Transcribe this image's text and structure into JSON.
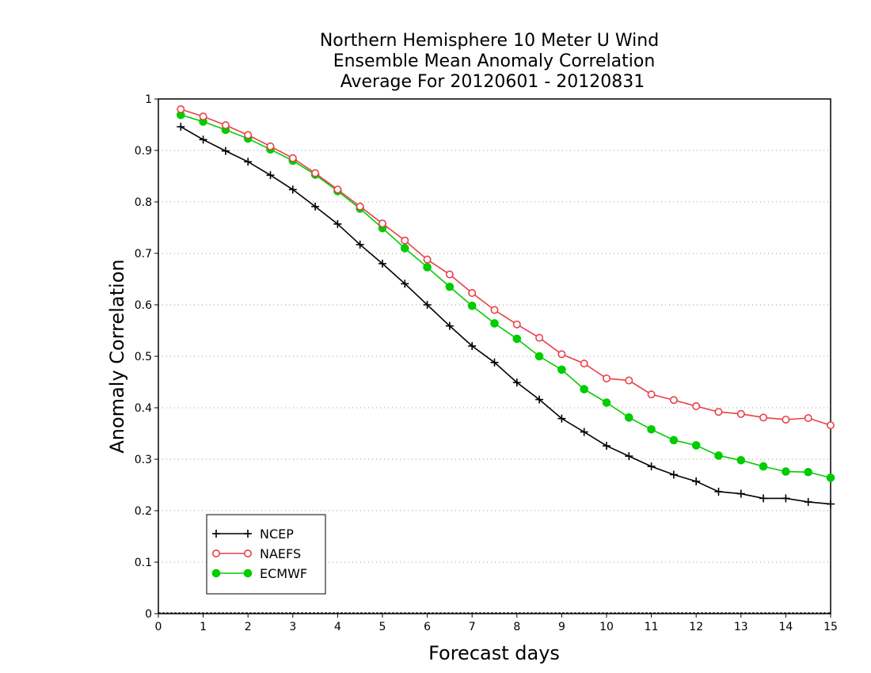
{
  "chart_data": {
    "type": "line",
    "title": [
      "Northern Hemisphere 10 Meter U Wind",
      "Ensemble Mean Anomaly Correlation",
      "Average For 20120601 - 20120831"
    ],
    "xlabel": "Forecast days",
    "ylabel": "Anomaly Correlation",
    "xlim": [
      0,
      15
    ],
    "ylim": [
      0,
      1
    ],
    "xticks": [
      "0",
      "1",
      "2",
      "3",
      "4",
      "5",
      "6",
      "7",
      "8",
      "9",
      "10",
      "11",
      "12",
      "13",
      "14",
      "15"
    ],
    "yticks": [
      "0",
      "0.1",
      "0.2",
      "0.3",
      "0.4",
      "0.5",
      "0.6",
      "0.7",
      "0.8",
      "0.9",
      "1"
    ],
    "grid": "horizontal-dotted",
    "legend_position": "bottom-left",
    "x": [
      0.5,
      1,
      1.5,
      2,
      2.5,
      3,
      3.5,
      4,
      4.5,
      5,
      5.5,
      6,
      6.5,
      7,
      7.5,
      8,
      8.5,
      9,
      9.5,
      10,
      10.5,
      11,
      11.5,
      12,
      12.5,
      13,
      13.5,
      14,
      14.5,
      15
    ],
    "series": [
      {
        "name": "NCEP",
        "color": "#000000",
        "marker": "plus",
        "values": [
          0.946,
          0.921,
          0.899,
          0.878,
          0.852,
          0.824,
          0.791,
          0.757,
          0.717,
          0.68,
          0.641,
          0.6,
          0.559,
          0.52,
          0.488,
          0.449,
          0.416,
          0.379,
          0.353,
          0.326,
          0.306,
          0.286,
          0.27,
          0.257,
          0.237,
          0.233,
          0.224,
          0.224,
          0.217,
          0.213
        ]
      },
      {
        "name": "NAEFS",
        "color": "#e8404a",
        "marker": "open-circle",
        "values": [
          0.98,
          0.966,
          0.949,
          0.93,
          0.908,
          0.885,
          0.856,
          0.824,
          0.791,
          0.758,
          0.725,
          0.688,
          0.659,
          0.623,
          0.59,
          0.562,
          0.536,
          0.504,
          0.486,
          0.457,
          0.453,
          0.426,
          0.415,
          0.403,
          0.392,
          0.388,
          0.381,
          0.377,
          0.38,
          0.366
        ]
      },
      {
        "name": "ECMWF",
        "color": "#00cc00",
        "marker": "filled-circle",
        "values": [
          0.969,
          0.956,
          0.94,
          0.923,
          0.902,
          0.88,
          0.853,
          0.821,
          0.787,
          0.749,
          0.71,
          0.673,
          0.635,
          0.598,
          0.564,
          0.534,
          0.5,
          0.474,
          0.436,
          0.41,
          0.381,
          0.358,
          0.337,
          0.327,
          0.307,
          0.298,
          0.286,
          0.276,
          0.275,
          0.264
        ]
      }
    ]
  }
}
